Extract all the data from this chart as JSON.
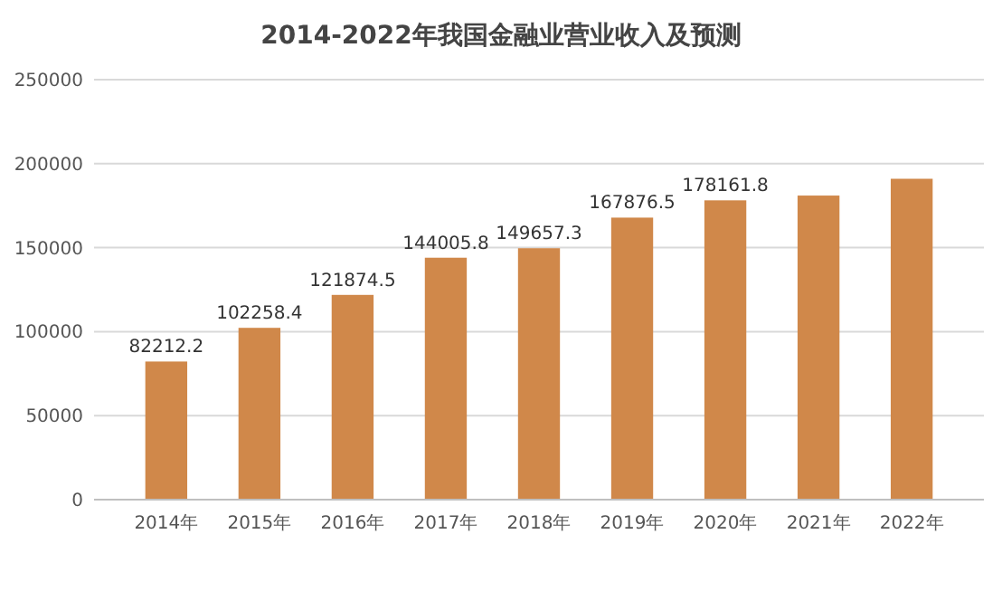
{
  "chart_data": {
    "type": "bar",
    "title": "2014-2022年我国金融业营业收入及预测",
    "categories": [
      "2014年",
      "2015年",
      "2016年",
      "2017年",
      "2018年",
      "2019年",
      "2020年",
      "2021年",
      "2022年"
    ],
    "values": [
      82212.2,
      102258.4,
      121874.5,
      144005.8,
      149657.3,
      167876.5,
      178161.8,
      181000,
      191000
    ],
    "value_labels": [
      "82212.2",
      "102258.4",
      "121874.5",
      "144005.8",
      "149657.3",
      "167876.5",
      "178161.8",
      null,
      null
    ],
    "color": "#d0884a",
    "ylim": [
      0,
      250000
    ],
    "yticks": [
      0,
      50000,
      100000,
      150000,
      200000,
      250000
    ],
    "grid": "y"
  }
}
